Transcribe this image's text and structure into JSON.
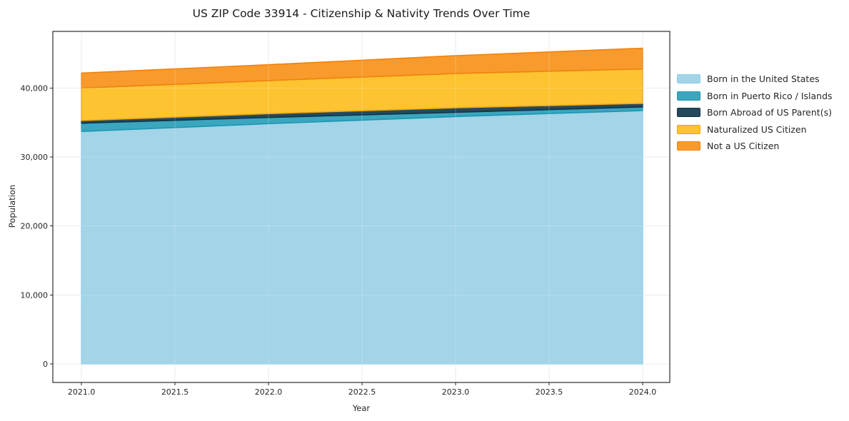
{
  "title": "US ZIP Code 33914 - Citizenship & Nativity Trends Over Time",
  "chart_data": {
    "type": "area",
    "stacked": true,
    "title": "US ZIP Code 33914 - Citizenship & Nativity Trends Over Time",
    "xlabel": "Year",
    "ylabel": "Population",
    "x": [
      2021,
      2022,
      2023,
      2024
    ],
    "series": [
      {
        "name": "Born in the United States",
        "values": [
          33700,
          34830,
          35860,
          36730
        ],
        "fill": "#a3d4e8",
        "edge": "#87ceeb"
      },
      {
        "name": "Born in Puerto Rico / Islands",
        "values": [
          1200,
          900,
          620,
          520
        ],
        "fill": "#3ba6bd",
        "edge": "#1998b4"
      },
      {
        "name": "Born Abroad of US Parent(s)",
        "values": [
          380,
          550,
          650,
          520
        ],
        "fill": "#25495c",
        "edge": "#0f3548"
      },
      {
        "name": "Naturalized US Citizen",
        "values": [
          4720,
          4800,
          4980,
          5000
        ],
        "fill": "#fdc330",
        "edge": "#eba417"
      },
      {
        "name": "Not a US Citizen",
        "values": [
          2170,
          2300,
          2580,
          3000
        ],
        "fill": "#f89b2c",
        "edge": "#ef8210"
      }
    ],
    "totals": [
      42170,
      43380,
      44690,
      45770
    ],
    "xlim": [
      2020.847,
      2024.145
    ],
    "ylim": [
      -2690,
      48208
    ],
    "xticks": {
      "values": [
        2021.0,
        2021.5,
        2022.0,
        2022.5,
        2023.0,
        2023.5,
        2024.0
      ],
      "labels": [
        "2021.0",
        "2021.5",
        "2022.0",
        "2022.5",
        "2023.0",
        "2023.5",
        "2024.0"
      ]
    },
    "yticks": {
      "values": [
        0,
        10000,
        20000,
        30000,
        40000
      ],
      "labels": [
        "0",
        "10,000",
        "20,000",
        "30,000",
        "40,000"
      ]
    },
    "legend_position": "right",
    "grid": true
  },
  "colors": {
    "background": "#ffffff",
    "grid": "#e6e6e6",
    "grid_overlay": "rgba(255,255,255,0.22)",
    "spine": "#000000",
    "tick": "#262626",
    "text": "#262626"
  }
}
